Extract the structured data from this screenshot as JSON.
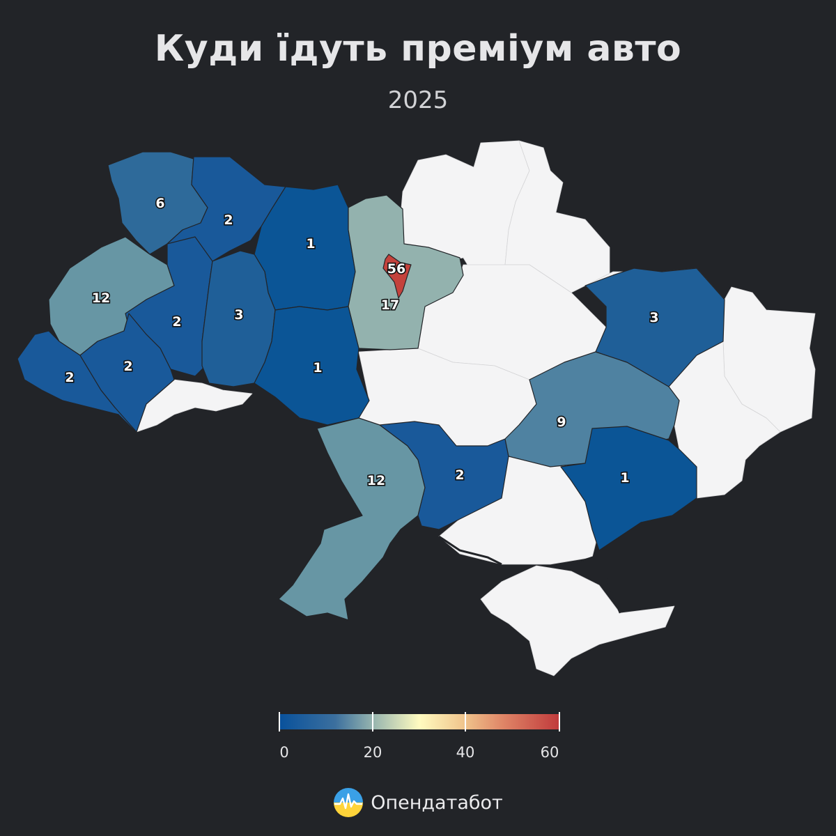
{
  "header": {
    "title": "Куди їдуть преміум авто",
    "subtitle": "2025"
  },
  "map_data": {
    "type": "choropleth",
    "regions": [
      {
        "name": "Волинська",
        "value": 6
      },
      {
        "name": "Рівненська",
        "value": 2
      },
      {
        "name": "Житомирська",
        "value": 1
      },
      {
        "name": "Київська",
        "value": 17
      },
      {
        "name": "м. Київ",
        "value": 56
      },
      {
        "name": "Львівська",
        "value": 12
      },
      {
        "name": "Тернопільська",
        "value": 2
      },
      {
        "name": "Хмельницька",
        "value": 3
      },
      {
        "name": "Вінницька",
        "value": 1
      },
      {
        "name": "Закарпатська",
        "value": 2
      },
      {
        "name": "Івано-Франківська",
        "value": 2
      },
      {
        "name": "Одеська",
        "value": 12
      },
      {
        "name": "Миколаївська",
        "value": 2
      },
      {
        "name": "Дніпропетровська",
        "value": 9
      },
      {
        "name": "Запорізька",
        "value": 1
      },
      {
        "name": "Полтавська",
        "value": 3
      },
      {
        "name": "Чернігівська",
        "value": null
      },
      {
        "name": "Сумська",
        "value": null
      },
      {
        "name": "Черкаська",
        "value": null
      },
      {
        "name": "Кіровоградська",
        "value": null
      },
      {
        "name": "Харківська",
        "value": null
      },
      {
        "name": "Луганська",
        "value": null
      },
      {
        "name": "Донецька",
        "value": null
      },
      {
        "name": "Херсонська",
        "value": null
      },
      {
        "name": "Чернівецька",
        "value": null
      },
      {
        "name": "Крим",
        "value": null
      }
    ],
    "nodata_color": "#f4f4f5",
    "colors": {
      "1": "#0b5596",
      "2": "#19599a",
      "3": "#1f5f98",
      "6": "#2e6a9a",
      "9": "#4f82a1",
      "12": "#6796a4",
      "17": "#93b2ae",
      "56": "#c4423c"
    }
  },
  "legend": {
    "min": 0,
    "max": 60,
    "ticks": [
      "0",
      "20",
      "40",
      "60"
    ],
    "stops": [
      "#08519c",
      "#93b2ae",
      "#fffbc0",
      "#c0393b"
    ]
  },
  "brand": {
    "name": "Опендатабот",
    "logo_icon": "opendatabot-logo-icon"
  }
}
